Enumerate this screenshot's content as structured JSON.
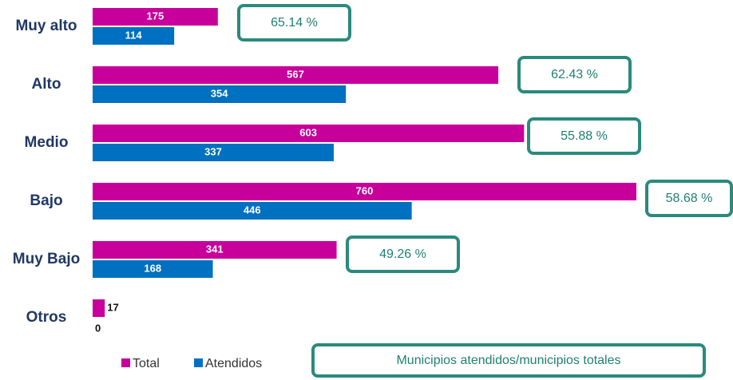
{
  "chart_data": {
    "type": "bar",
    "orientation": "horizontal",
    "categories": [
      "Muy alto",
      "Alto",
      "Medio",
      "Bajo",
      "Muy Bajo",
      "Otros"
    ],
    "series": [
      {
        "name": "Total",
        "color": "#c8009b",
        "values": [
          175,
          567,
          603,
          760,
          341,
          17
        ]
      },
      {
        "name": "Atendidos",
        "color": "#0070c0",
        "values": [
          114,
          354,
          337,
          446,
          168,
          0
        ]
      }
    ],
    "annotations": [
      "65.14 %",
      "62.43 %",
      "55.88 %",
      "58.68 %",
      "49.26 %"
    ],
    "note": "Municipios atendidos/municipios totales",
    "legend": "bottom"
  }
}
